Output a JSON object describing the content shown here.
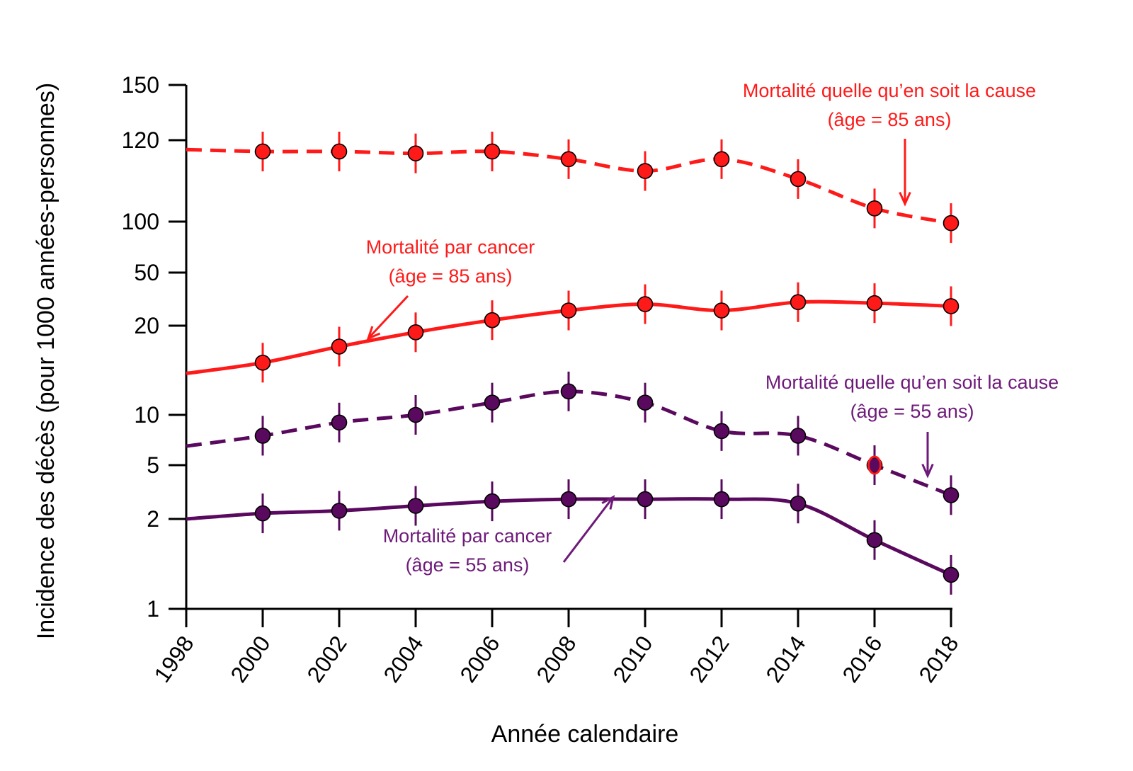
{
  "chart_data": {
    "type": "line",
    "xlabel": "Année calendaire",
    "ylabel": "Incidence des décès (pour 1000 années-personnes)",
    "x_ticks": [
      "1998",
      "2000",
      "2002",
      "2004",
      "2006",
      "2008",
      "2010",
      "2012",
      "2014",
      "2016",
      "2018"
    ],
    "y_ticks": [
      "1",
      "2",
      "5",
      "10",
      "20",
      "50",
      "100",
      "120",
      "150"
    ],
    "y_tick_values": [
      1,
      2,
      5,
      10,
      20,
      50,
      100,
      120,
      150
    ],
    "xlim": [
      1998,
      2018
    ],
    "colors": {
      "red": "#ff1a1a",
      "purple": "#5a0a5e",
      "purple_text": "#6e1a7a"
    },
    "series": [
      {
        "id": "allcause85",
        "color": "#ff1a1a",
        "dash": true,
        "x": [
          2000,
          2002,
          2004,
          2006,
          2008,
          2010,
          2012,
          2014,
          2016,
          2018
        ],
        "y": [
          117,
          117,
          116.5,
          117,
          115,
          112,
          115,
          110,
          103,
          98
        ]
      },
      {
        "id": "cancer85",
        "color": "#ff1a1a",
        "dash": false,
        "x": [
          2000,
          2002,
          2004,
          2006,
          2008,
          2010,
          2012,
          2014,
          2016,
          2018
        ],
        "y": [
          15,
          17,
          19,
          22,
          26,
          29,
          26,
          30,
          29.5,
          28
        ]
      },
      {
        "id": "allcause55",
        "color": "#5a0a5e",
        "dash": true,
        "x": [
          2000,
          2002,
          2004,
          2006,
          2008,
          2010,
          2012,
          2014,
          2016,
          2018
        ],
        "y": [
          7.5,
          9,
          10,
          11,
          12,
          11,
          8,
          7.5,
          5,
          3
        ]
      },
      {
        "id": "cancer55",
        "color": "#5a0a5e",
        "dash": false,
        "x": [
          2000,
          2002,
          2004,
          2006,
          2008,
          2010,
          2012,
          2014,
          2016,
          2018
        ],
        "y": [
          2.2,
          2.3,
          2.5,
          2.7,
          2.8,
          2.8,
          2.8,
          2.6,
          1.7,
          1.3
        ]
      }
    ],
    "annotations": [
      {
        "id": "allcause85",
        "line1": "Mortalité quelle qu’en soit la cause",
        "line2": "(âge = 85 ans)",
        "color": "#ff1a1a"
      },
      {
        "id": "cancer85",
        "line1": "Mortalité par cancer",
        "line2": "(âge = 85 ans)",
        "color": "#ff1a1a"
      },
      {
        "id": "allcause55",
        "line1": "Mortalité quelle qu’en soit la cause",
        "line2": "(âge = 55 ans)",
        "color": "#6e1a7a"
      },
      {
        "id": "cancer55",
        "line1": "Mortalité par cancer",
        "line2": "(âge = 55 ans)",
        "color": "#6e1a7a"
      }
    ]
  }
}
